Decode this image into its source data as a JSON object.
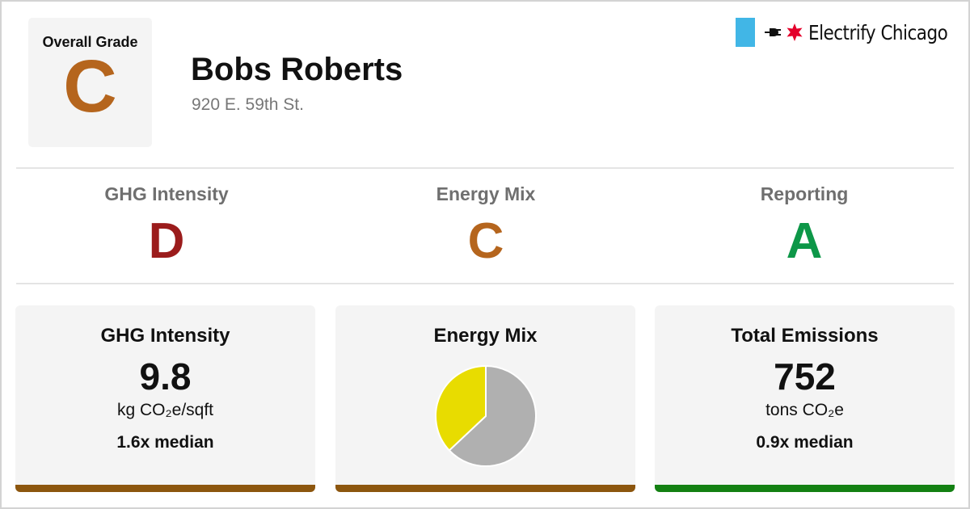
{
  "header": {
    "overall_label": "Overall Grade",
    "overall_grade": "C",
    "building_name": "Bobs Roberts",
    "address": "920 E. 59th St."
  },
  "brand": {
    "name": "Electrify Chicago",
    "flag_color": "#41b6e6",
    "star_color": "#e4002b",
    "icons": [
      "flag-icon",
      "plug-icon",
      "star-icon"
    ]
  },
  "grades": [
    {
      "label": "GHG Intensity",
      "grade": "D",
      "color": "#9b1c1c"
    },
    {
      "label": "Energy Mix",
      "grade": "C",
      "color": "#b5651d"
    },
    {
      "label": "Reporting",
      "grade": "A",
      "color": "#0d9748"
    }
  ],
  "colors": {
    "grade_c": "#b5651d",
    "grade_d": "#9b1c1c",
    "grade_a": "#0d9748",
    "bar_brown": "#8c560e",
    "bar_green": "#138012"
  },
  "cards": {
    "ghg": {
      "title": "GHG Intensity",
      "value": "9.8",
      "unit": "kg CO₂e/sqft",
      "median": "1.6x median",
      "bar_color": "#8c560e"
    },
    "energy_mix": {
      "title": "Energy Mix",
      "bar_color": "#8c560e"
    },
    "emissions": {
      "title": "Total Emissions",
      "value": "752",
      "unit": "tons CO₂e",
      "median": "0.9x median",
      "bar_color": "#138012"
    }
  },
  "chart_data": {
    "type": "pie",
    "title": "",
    "slices": [
      {
        "value": 63,
        "color": "#b0b0b0"
      },
      {
        "value": 37,
        "color": "#e8dc00"
      }
    ]
  }
}
